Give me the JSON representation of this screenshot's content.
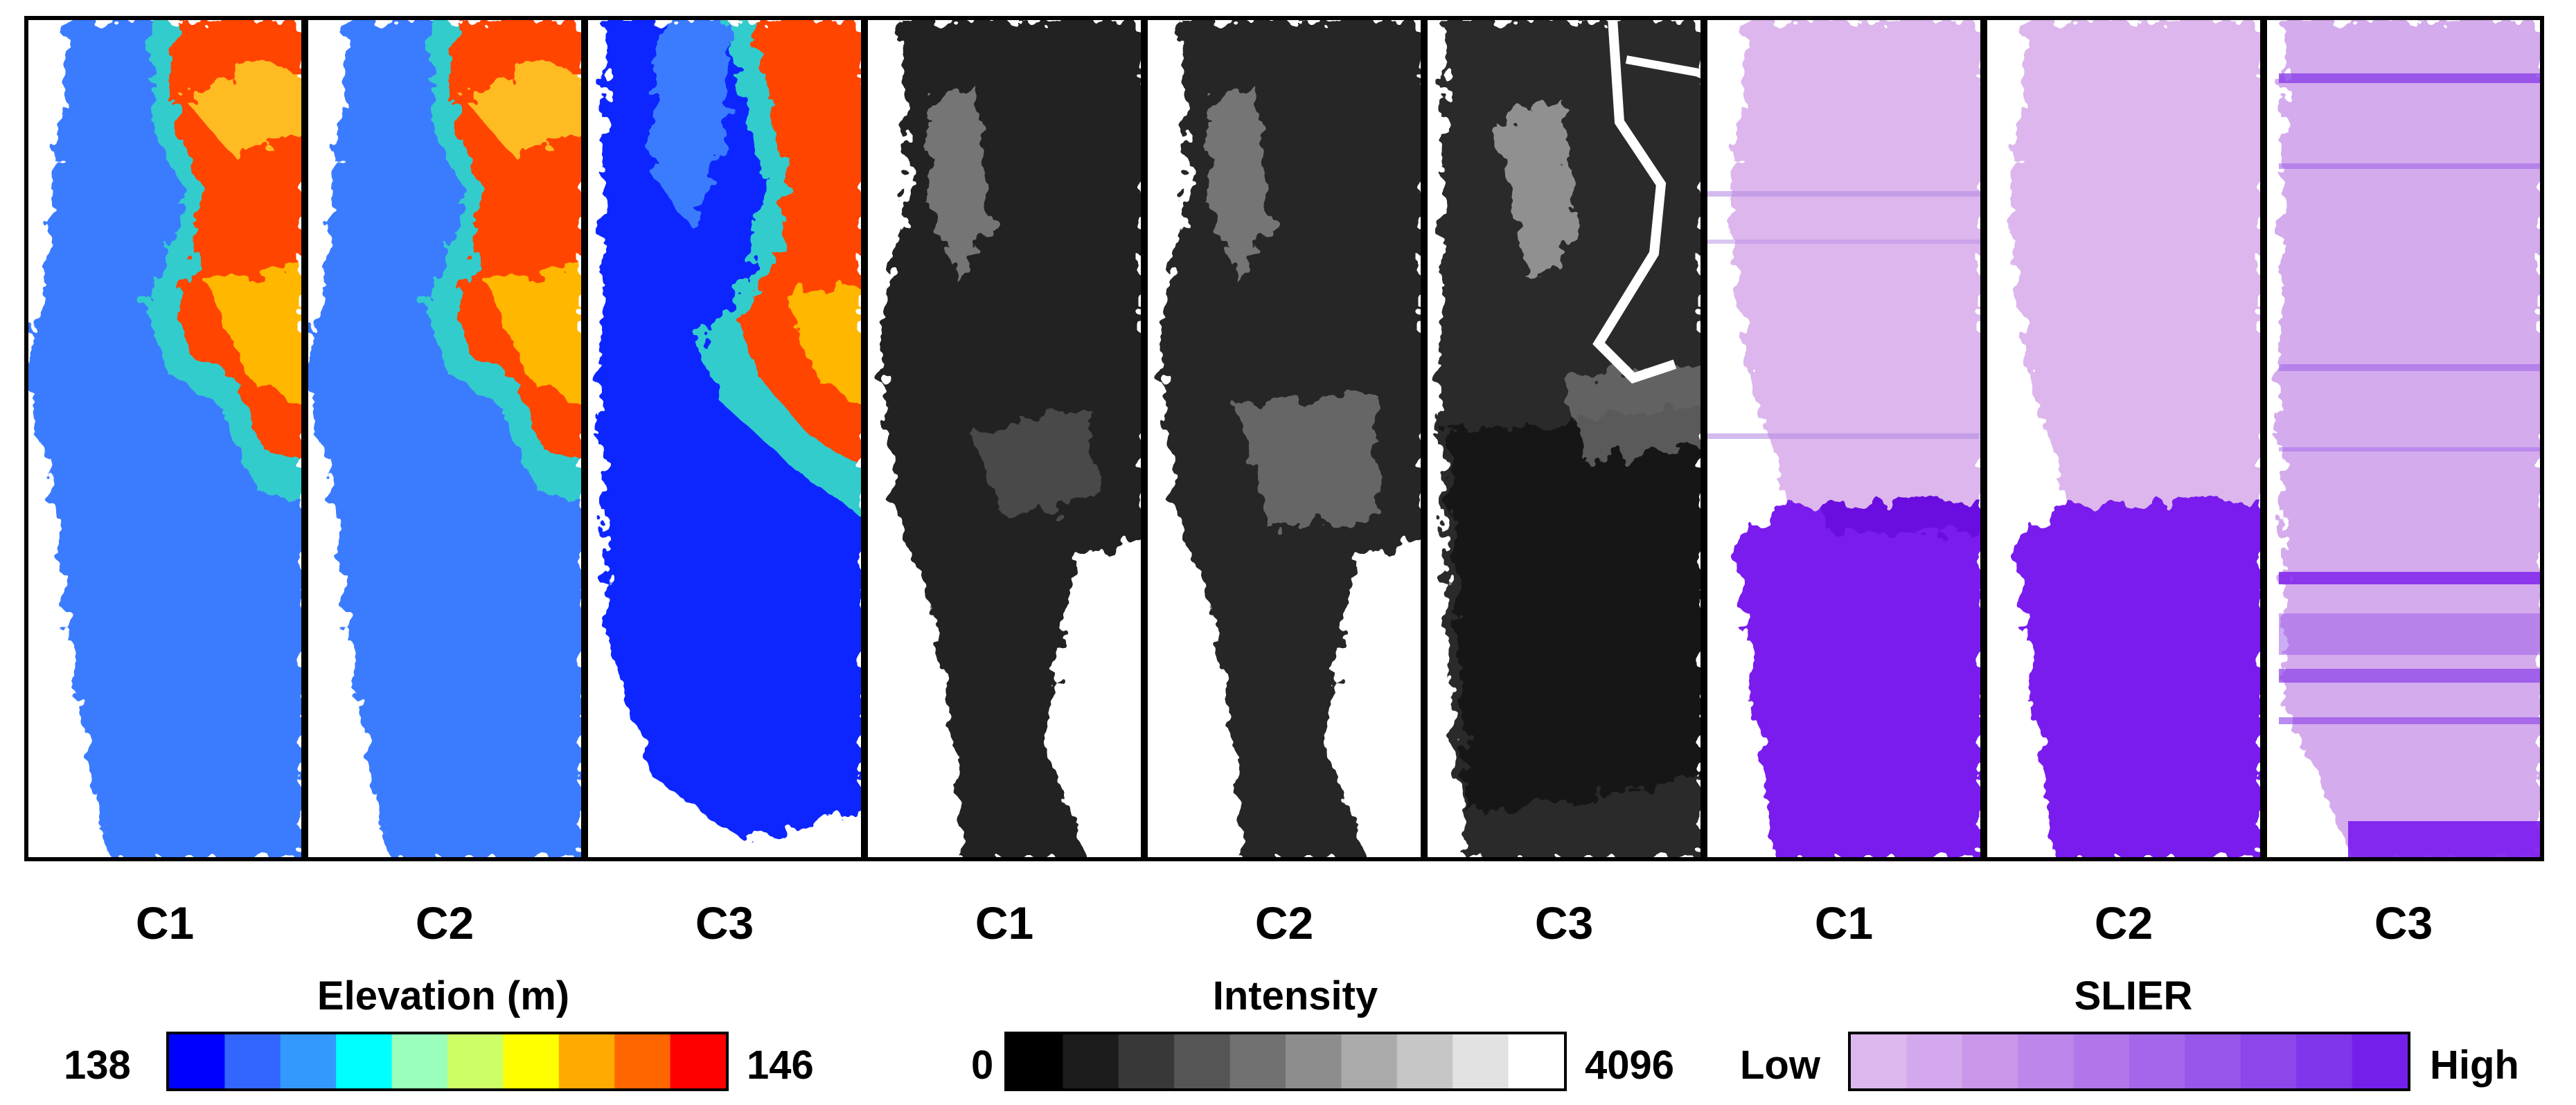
{
  "panel_labels": [
    "C1",
    "C2",
    "C3",
    "C1",
    "C2",
    "C3",
    "C1",
    "C2",
    "C3"
  ],
  "colorbars": {
    "elevation": {
      "title": "Elevation (m)",
      "min_label": "138",
      "max_label": "146",
      "colors": [
        "#0000ff",
        "#3366ff",
        "#3399ff",
        "#00ffff",
        "#99ffbb",
        "#ccff66",
        "#ffff00",
        "#ffaa00",
        "#ff6600",
        "#ff0000"
      ]
    },
    "intensity": {
      "title": "Intensity",
      "min_label": "0",
      "max_label": "4096",
      "colors": [
        "#000000",
        "#1c1c1c",
        "#383838",
        "#555555",
        "#717171",
        "#8d8d8d",
        "#aaaaaa",
        "#c6c6c6",
        "#e2e2e2",
        "#ffffff"
      ]
    },
    "slier": {
      "title": "SLIER",
      "min_label": "Low",
      "max_label": "High",
      "colors": [
        "#ddb8ee",
        "#d4a8ec",
        "#c996ea",
        "#bd86ea",
        "#b076ea",
        "#a466ea",
        "#9856ea",
        "#8c46ea",
        "#8036ea",
        "#7420ea"
      ]
    }
  },
  "colors": {
    "elevation_water": "#3a7bff",
    "elevation_deep": "#0a28ff",
    "elevation_shore": "#33cccc",
    "elevation_land": "#ff3300",
    "intensity_dark": "#222222",
    "slier_light": "#dcb6ec",
    "slier_dark": "#7a1aee"
  }
}
